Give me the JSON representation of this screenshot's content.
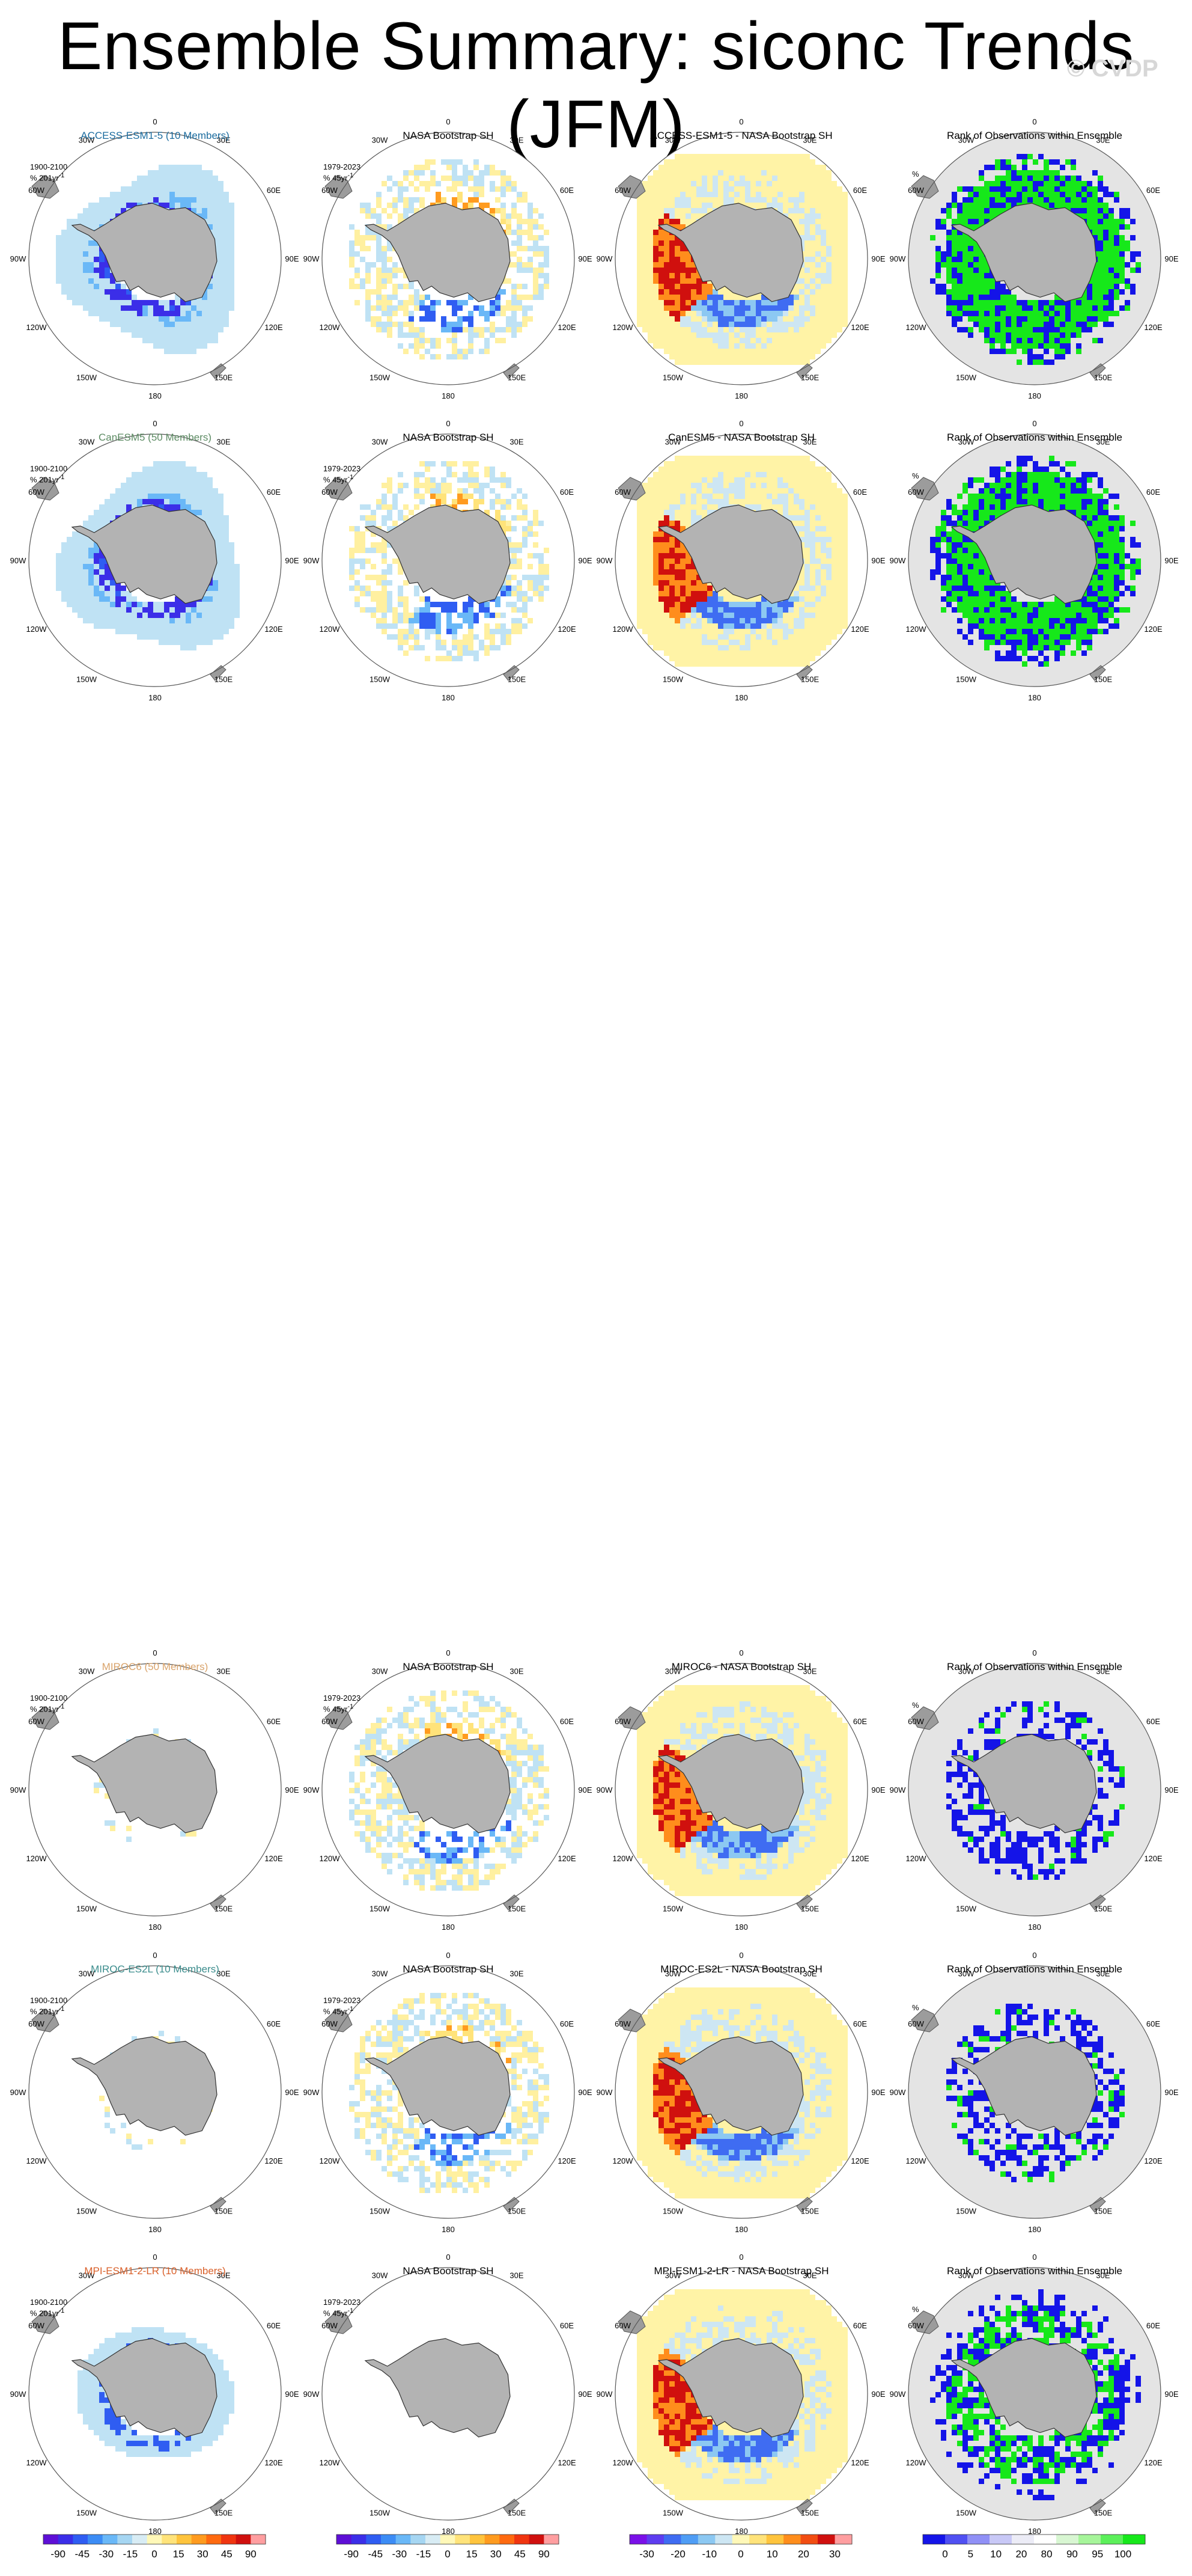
{
  "title": "Ensemble Summary: siconc Trends (JFM)",
  "watermark": "© CVDP",
  "rows": [
    {
      "model": "ACCESS-ESM1-5 (10 Members)",
      "model_color": "#1a6b9e",
      "period_model": "1900-2100",
      "units_model": "% 201yr",
      "units_sup": "-1",
      "obs_title": "NASA Bootstrap SH",
      "period_obs": "1979-2023",
      "units_obs": "% 45yr",
      "diff_title": "ACCESS-ESM1-5 - NASA Bootstrap SH",
      "rank_title": "Rank of Observations within Ensemble",
      "rank_units": "%",
      "model_trend": "strong-decline-wide",
      "rank_pattern": "mostly-green"
    },
    {
      "model": "CanESM5 (50 Members)",
      "model_color": "#5c8b63",
      "period_model": "1900-2100",
      "units_model": "% 201yr",
      "units_sup": "-1",
      "obs_title": "NASA Bootstrap SH",
      "period_obs": "1979-2023",
      "units_obs": "% 45yr",
      "diff_title": "CanESM5 - NASA Bootstrap SH",
      "rank_title": "Rank of Observations within Ensemble",
      "rank_units": "%",
      "model_trend": "strong-decline-wide",
      "rank_pattern": "mostly-green"
    },
    {
      "model": "MIROC6 (50 Members)",
      "model_color": "#d9a36a",
      "period_model": "1900-2100",
      "units_model": "% 201yr",
      "units_sup": "-1",
      "obs_title": "NASA Bootstrap SH",
      "period_obs": "1979-2023",
      "units_obs": "% 45yr",
      "diff_title": "MIROC6 - NASA Bootstrap SH",
      "rank_title": "Rank of Observations within Ensemble",
      "rank_units": "%",
      "model_trend": "minimal",
      "rank_pattern": "mostly-blue"
    },
    {
      "model": "MIROC-ES2L (10 Members)",
      "model_color": "#3a8c8c",
      "period_model": "1900-2100",
      "units_model": "% 201yr",
      "units_sup": "-1",
      "obs_title": "NASA Bootstrap SH",
      "period_obs": "1979-2023",
      "units_obs": "% 45yr",
      "diff_title": "MIROC-ES2L - NASA Bootstrap SH",
      "rank_title": "Rank of Observations within Ensemble",
      "rank_units": "%",
      "model_trend": "minimal",
      "rank_pattern": "mostly-blue"
    },
    {
      "model": "MPI-ESM1-2-LR (10 Members)",
      "model_color": "#d9602a",
      "period_model": "1900-2100",
      "units_model": "% 201yr",
      "units_sup": "-1",
      "obs_title": "NASA Bootstrap SH",
      "period_obs": "1979-2023",
      "units_obs": "% 45yr",
      "diff_title": "MPI-ESM1-2-LR - NASA Bootstrap SH",
      "rank_title": "Rank of Observations within Ensemble",
      "rank_units": "%",
      "model_trend": "moderate-decline",
      "rank_pattern": "mixed"
    }
  ],
  "longitude_labels": [
    "0",
    "30E",
    "60E",
    "90E",
    "120E",
    "150E",
    "180",
    "150W",
    "120W",
    "90W",
    "60W",
    "30W"
  ],
  "colorbars": [
    {
      "name": "trend-colorbar-model",
      "labels": [
        "-90",
        "-45",
        "-30",
        "-15",
        "0",
        "15",
        "30",
        "45",
        "90"
      ],
      "colors": [
        "#5e0fd6",
        "#3b2ee8",
        "#2f5df2",
        "#3c8cf5",
        "#6ab8f7",
        "#a6d6f2",
        "#d8ecf4",
        "#fff8b8",
        "#ffe37a",
        "#ffc43d",
        "#ff9b1f",
        "#ff6a10",
        "#f03510",
        "#d0100e",
        "#ff9ea0"
      ]
    },
    {
      "name": "trend-colorbar-obs",
      "labels": [
        "-90",
        "-45",
        "-30",
        "-15",
        "0",
        "15",
        "30",
        "45",
        "90"
      ],
      "colors": [
        "#5e0fd6",
        "#3b2ee8",
        "#2f5df2",
        "#3c8cf5",
        "#6ab8f7",
        "#a6d6f2",
        "#d8ecf4",
        "#fff8b8",
        "#ffe37a",
        "#ffc43d",
        "#ff9b1f",
        "#ff6a10",
        "#f03510",
        "#d0100e",
        "#ff9ea0"
      ]
    },
    {
      "name": "diff-colorbar",
      "labels": [
        "-30",
        "-20",
        "-10",
        "0",
        "10",
        "20",
        "30"
      ],
      "colors": [
        "#7a10e8",
        "#5e3df0",
        "#3f6cf2",
        "#4f9df5",
        "#8cc8f2",
        "#cde6f3",
        "#fff8b8",
        "#ffe37a",
        "#ffc43d",
        "#ff8d1c",
        "#f24d12",
        "#d0100e",
        "#ff9ea0"
      ]
    },
    {
      "name": "rank-colorbar",
      "labels": [
        "0",
        "5",
        "10",
        "20",
        "80",
        "90",
        "95",
        "100"
      ],
      "colors": [
        "#1414e8",
        "#5050f2",
        "#9090f6",
        "#c8c8f6",
        "#ececf6",
        "#ffffff",
        "#d8f6d2",
        "#a6f59a",
        "#5cf05a",
        "#16e81a"
      ]
    }
  ]
}
